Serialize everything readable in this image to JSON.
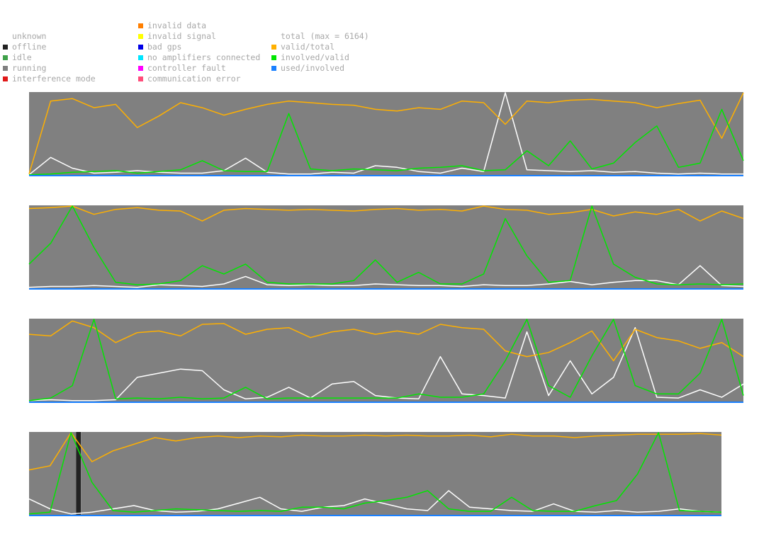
{
  "legend": {
    "states": [
      {
        "label": "unknown",
        "color": ""
      },
      {
        "label": "offline",
        "color": "#222222"
      },
      {
        "label": "idle",
        "color": "#3fa14a"
      },
      {
        "label": "running",
        "color": "#808080"
      },
      {
        "label": "interference mode",
        "color": "#e01919"
      }
    ],
    "errors": [
      {
        "label": "invalid data",
        "color": "#ff7f00"
      },
      {
        "label": "invalid signal",
        "color": "#ffff00"
      },
      {
        "label": "bad gps",
        "color": "#0000e6"
      },
      {
        "label": "no amplifiers connected",
        "color": "#00e5ff"
      },
      {
        "label": "controller fault",
        "color": "#ff00ff"
      },
      {
        "label": "communication error",
        "color": "#ff4d7a"
      }
    ],
    "ratios": [
      {
        "label": "total (max = 6164)",
        "color": ""
      },
      {
        "label": "valid/total",
        "color": "#ffb000"
      },
      {
        "label": "involved/valid",
        "color": "#00e600"
      },
      {
        "label": "used/involved",
        "color": "#1a80ff"
      }
    ]
  },
  "colors": {
    "running": "#808080",
    "offline": "#222222",
    "total": "#ffffff",
    "valid_total": "#ffb000",
    "involved_valid": "#00e600",
    "used_involved": "#1a80ff"
  },
  "chart_data": {
    "type": "line",
    "title": "",
    "xlabel": "",
    "ylabel": "",
    "ylim": [
      0,
      1
    ],
    "total_max": 6164,
    "series_order": [
      "total",
      "valid/total",
      "involved/valid",
      "used/involved"
    ],
    "rows": [
      {
        "x": [
          0,
          3,
          6,
          9,
          12,
          15,
          18,
          21,
          24,
          27,
          30,
          33,
          36,
          39,
          42,
          45,
          48,
          51,
          54,
          57,
          60,
          63,
          66,
          69,
          72,
          75,
          78,
          81,
          84,
          87,
          90,
          93,
          96,
          99
        ],
        "state": [
          {
            "from": 0,
            "to": 100,
            "state": "running"
          }
        ],
        "total": [
          0.01,
          0.22,
          0.09,
          0.03,
          0.04,
          0.06,
          0.04,
          0.03,
          0.03,
          0.06,
          0.21,
          0.04,
          0.02,
          0.02,
          0.04,
          0.03,
          0.12,
          0.1,
          0.05,
          0.03,
          0.09,
          0.05,
          1.0,
          0.07,
          0.06,
          0.05,
          0.06,
          0.04,
          0.05,
          0.03,
          0.02,
          0.03,
          0.02,
          0.02
        ],
        "valid/total": [
          0.02,
          0.9,
          0.93,
          0.82,
          0.86,
          0.58,
          0.72,
          0.88,
          0.82,
          0.73,
          0.8,
          0.86,
          0.9,
          0.88,
          0.86,
          0.85,
          0.8,
          0.78,
          0.82,
          0.8,
          0.9,
          0.88,
          0.62,
          0.9,
          0.88,
          0.91,
          0.92,
          0.9,
          0.88,
          0.82,
          0.87,
          0.91,
          0.45,
          1.0
        ],
        "involved/valid": [
          0.01,
          0.02,
          0.04,
          0.05,
          0.06,
          0.03,
          0.05,
          0.07,
          0.18,
          0.06,
          0.05,
          0.05,
          0.75,
          0.08,
          0.06,
          0.08,
          0.07,
          0.06,
          0.09,
          0.1,
          0.12,
          0.06,
          0.07,
          0.3,
          0.12,
          0.42,
          0.08,
          0.15,
          0.4,
          0.6,
          0.1,
          0.15,
          0.8,
          0.18
        ],
        "used/involved": [
          0,
          0,
          0,
          0,
          0,
          0,
          0,
          0,
          0,
          0,
          0,
          0,
          0,
          0,
          0,
          0,
          0,
          0,
          0,
          0,
          0,
          0,
          0,
          0,
          0,
          0,
          0,
          0,
          0,
          0,
          0,
          0,
          0,
          0
        ]
      },
      {
        "x": [
          0,
          3,
          6,
          9,
          12,
          15,
          18,
          21,
          24,
          27,
          30,
          33,
          36,
          39,
          42,
          45,
          48,
          51,
          54,
          57,
          60,
          63,
          66,
          69,
          72,
          75,
          78,
          81,
          84,
          87,
          90,
          93,
          96,
          99
        ],
        "state": [
          {
            "from": 0,
            "to": 100,
            "state": "running"
          }
        ],
        "total": [
          0.02,
          0.03,
          0.03,
          0.04,
          0.03,
          0.02,
          0.05,
          0.04,
          0.03,
          0.06,
          0.15,
          0.05,
          0.04,
          0.05,
          0.04,
          0.04,
          0.06,
          0.05,
          0.04,
          0.04,
          0.03,
          0.05,
          0.04,
          0.04,
          0.06,
          0.09,
          0.05,
          0.08,
          0.1,
          0.1,
          0.05,
          0.28,
          0.04,
          0.03
        ],
        "valid/total": [
          0.97,
          0.98,
          1.0,
          0.9,
          0.96,
          0.98,
          0.95,
          0.94,
          0.82,
          0.95,
          0.97,
          0.96,
          0.95,
          0.96,
          0.95,
          0.94,
          0.96,
          0.97,
          0.95,
          0.96,
          0.94,
          1.0,
          0.96,
          0.95,
          0.9,
          0.92,
          0.96,
          0.88,
          0.93,
          0.9,
          0.96,
          0.82,
          0.94,
          0.85
        ],
        "involved/valid": [
          0.3,
          0.55,
          1.0,
          0.5,
          0.08,
          0.05,
          0.06,
          0.1,
          0.28,
          0.18,
          0.3,
          0.08,
          0.06,
          0.06,
          0.06,
          0.1,
          0.35,
          0.08,
          0.2,
          0.06,
          0.06,
          0.18,
          0.85,
          0.4,
          0.08,
          0.1,
          1.0,
          0.3,
          0.14,
          0.06,
          0.05,
          0.06,
          0.05,
          0.06
        ],
        "used/involved": [
          0,
          0,
          0,
          0,
          0,
          0,
          0,
          0,
          0,
          0,
          0,
          0,
          0,
          0,
          0,
          0,
          0,
          0,
          0,
          0,
          0,
          0,
          0,
          0,
          0,
          0,
          0,
          0,
          0,
          0,
          0,
          0,
          0,
          0
        ]
      },
      {
        "x": [
          0,
          3,
          6,
          9,
          12,
          15,
          18,
          21,
          24,
          27,
          30,
          33,
          36,
          39,
          42,
          45,
          48,
          51,
          54,
          57,
          60,
          63,
          66,
          69,
          72,
          75,
          78,
          81,
          84,
          87,
          90,
          93,
          96,
          99
        ],
        "state": [
          {
            "from": 0,
            "to": 100,
            "state": "running"
          }
        ],
        "total": [
          0.02,
          0.03,
          0.02,
          0.02,
          0.03,
          0.3,
          0.35,
          0.4,
          0.38,
          0.15,
          0.04,
          0.06,
          0.18,
          0.05,
          0.22,
          0.25,
          0.08,
          0.05,
          0.04,
          0.55,
          0.1,
          0.08,
          0.05,
          0.85,
          0.08,
          0.5,
          0.1,
          0.3,
          0.9,
          0.06,
          0.05,
          0.15,
          0.06,
          0.22
        ],
        "valid/total": [
          0.82,
          0.8,
          0.98,
          0.9,
          0.72,
          0.84,
          0.86,
          0.8,
          0.94,
          0.95,
          0.82,
          0.88,
          0.9,
          0.78,
          0.85,
          0.88,
          0.82,
          0.86,
          0.82,
          0.94,
          0.9,
          0.88,
          0.62,
          0.55,
          0.6,
          0.72,
          0.86,
          0.5,
          0.88,
          0.78,
          0.74,
          0.65,
          0.72,
          0.55
        ],
        "involved/valid": [
          0.02,
          0.05,
          0.2,
          1.0,
          0.04,
          0.05,
          0.04,
          0.06,
          0.04,
          0.05,
          0.18,
          0.04,
          0.05,
          0.05,
          0.05,
          0.05,
          0.05,
          0.05,
          0.1,
          0.06,
          0.06,
          0.1,
          0.5,
          1.0,
          0.2,
          0.06,
          0.56,
          1.0,
          0.2,
          0.1,
          0.1,
          0.35,
          1.0,
          0.08
        ],
        "used/involved": [
          0,
          0,
          0,
          0,
          0,
          0,
          0,
          0,
          0,
          0,
          0,
          0,
          0,
          0,
          0,
          0,
          0,
          0,
          0,
          0,
          0,
          0,
          0,
          0,
          0,
          0,
          0,
          0,
          0,
          0,
          0,
          0,
          0,
          0
        ]
      },
      {
        "x": [
          0,
          3,
          6,
          9,
          12,
          15,
          18,
          21,
          24,
          27,
          30,
          33,
          36,
          39,
          42,
          45,
          48,
          51,
          54,
          57,
          60,
          63,
          66,
          69,
          72,
          75,
          78,
          81,
          84,
          87,
          90,
          93,
          96,
          99
        ],
        "state": [
          {
            "from": 0,
            "to": 6.8,
            "state": "running"
          },
          {
            "from": 6.8,
            "to": 7.5,
            "state": "offline"
          },
          {
            "from": 7.5,
            "to": 100,
            "state": "running"
          }
        ],
        "total": [
          0.2,
          0.08,
          0.02,
          0.04,
          0.08,
          0.12,
          0.06,
          0.04,
          0.05,
          0.08,
          0.15,
          0.22,
          0.08,
          0.05,
          0.1,
          0.12,
          0.2,
          0.14,
          0.08,
          0.06,
          0.3,
          0.1,
          0.08,
          0.06,
          0.05,
          0.14,
          0.05,
          0.04,
          0.06,
          0.04,
          0.05,
          0.08,
          0.05,
          0.04
        ],
        "valid/total": [
          0.55,
          0.6,
          1.0,
          0.65,
          0.78,
          0.86,
          0.94,
          0.9,
          0.94,
          0.96,
          0.94,
          0.96,
          0.95,
          0.97,
          0.96,
          0.96,
          0.97,
          0.96,
          0.97,
          0.96,
          0.96,
          0.97,
          0.95,
          0.98,
          0.96,
          0.96,
          0.94,
          0.96,
          0.97,
          0.98,
          0.98,
          0.98,
          0.99,
          0.97
        ],
        "involved/valid": [
          0.02,
          0.04,
          1.0,
          0.4,
          0.06,
          0.04,
          0.06,
          0.08,
          0.07,
          0.06,
          0.05,
          0.06,
          0.05,
          0.1,
          0.1,
          0.08,
          0.15,
          0.18,
          0.22,
          0.3,
          0.08,
          0.05,
          0.05,
          0.22,
          0.06,
          0.05,
          0.05,
          0.12,
          0.18,
          0.5,
          1.0,
          0.06,
          0.05,
          0.04
        ],
        "used/involved": [
          0,
          0,
          0,
          0,
          0,
          0,
          0,
          0,
          0,
          0,
          0,
          0,
          0,
          0,
          0,
          0,
          0,
          0,
          0,
          0,
          0,
          0,
          0,
          0,
          0,
          0,
          0,
          0,
          0,
          0,
          0,
          0,
          0,
          0
        ]
      }
    ]
  }
}
